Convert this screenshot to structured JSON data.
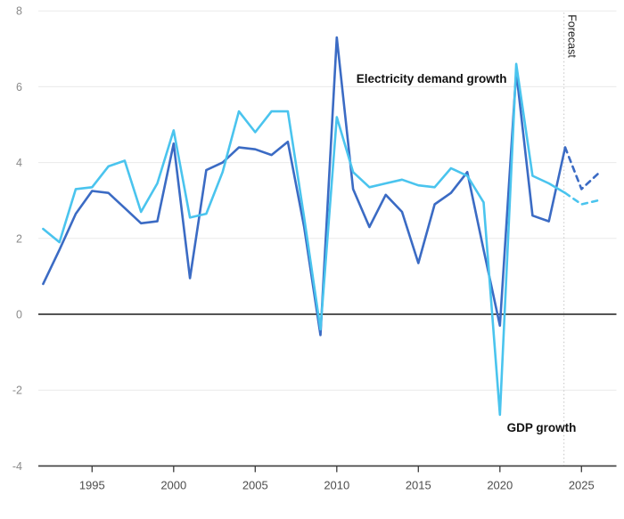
{
  "chart_data": {
    "type": "line",
    "title": "",
    "x": [
      1992,
      1993,
      1994,
      1995,
      1996,
      1997,
      1998,
      1999,
      2000,
      2001,
      2002,
      2003,
      2004,
      2005,
      2006,
      2007,
      2008,
      2009,
      2010,
      2011,
      2012,
      2013,
      2014,
      2015,
      2016,
      2017,
      2018,
      2019,
      2020,
      2021,
      2022,
      2023,
      2024,
      2025,
      2026
    ],
    "series": [
      {
        "name": "Electricity demand growth",
        "color": "#3b6bc4",
        "values": [
          0.8,
          1.7,
          2.65,
          3.25,
          3.2,
          2.8,
          2.4,
          2.45,
          4.5,
          0.95,
          3.8,
          4.0,
          4.4,
          4.35,
          4.2,
          4.55,
          2.3,
          -0.55,
          7.3,
          3.3,
          2.3,
          3.15,
          2.7,
          1.35,
          2.9,
          3.2,
          3.75,
          1.7,
          -0.3,
          6.4,
          2.6,
          2.45,
          4.4,
          3.3,
          3.7
        ]
      },
      {
        "name": "GDP growth",
        "color": "#4ac4ee",
        "values": [
          2.25,
          1.9,
          3.3,
          3.35,
          3.9,
          4.05,
          2.7,
          3.45,
          4.85,
          2.55,
          2.65,
          3.75,
          5.35,
          4.8,
          5.35,
          5.35,
          2.55,
          -0.4,
          5.2,
          3.75,
          3.35,
          3.45,
          3.55,
          3.4,
          3.35,
          3.85,
          3.65,
          2.95,
          -2.65,
          6.6,
          3.65,
          3.45,
          3.2,
          2.9,
          3.0
        ]
      }
    ],
    "forecast_start_year": 2024,
    "forecast_label": "Forecast",
    "ylim": [
      -4,
      8
    ],
    "yticks": [
      8,
      6,
      4,
      2,
      0,
      -2,
      -4
    ],
    "xticks": [
      1995,
      2000,
      2005,
      2010,
      2015,
      2020,
      2025
    ],
    "grid": "horizontal, light gray; zero line and bottom axis dark",
    "legend_position": "inline annotations on plot",
    "annotations": [
      {
        "text": "Electricity demand growth",
        "x": 2011.2,
        "y": 6.1,
        "anchor": "start",
        "bold": true
      },
      {
        "text": "GDP growth",
        "x": 2022.55,
        "y": -3.1,
        "anchor": "middle",
        "bold": true
      }
    ]
  },
  "colors": {
    "background": "#ffffff",
    "gridline": "#eaeaea",
    "zero_line": "#3c3c3c",
    "axis_line": "#3c3c3c",
    "x_tick_label": "#4d4d4d",
    "y_tick_label": "#8a8a8a",
    "forecast_divider": "#cccccc",
    "annotation_text": "#111111",
    "electricity_line": "#3b6bc4",
    "gdp_line": "#4ac4ee"
  }
}
